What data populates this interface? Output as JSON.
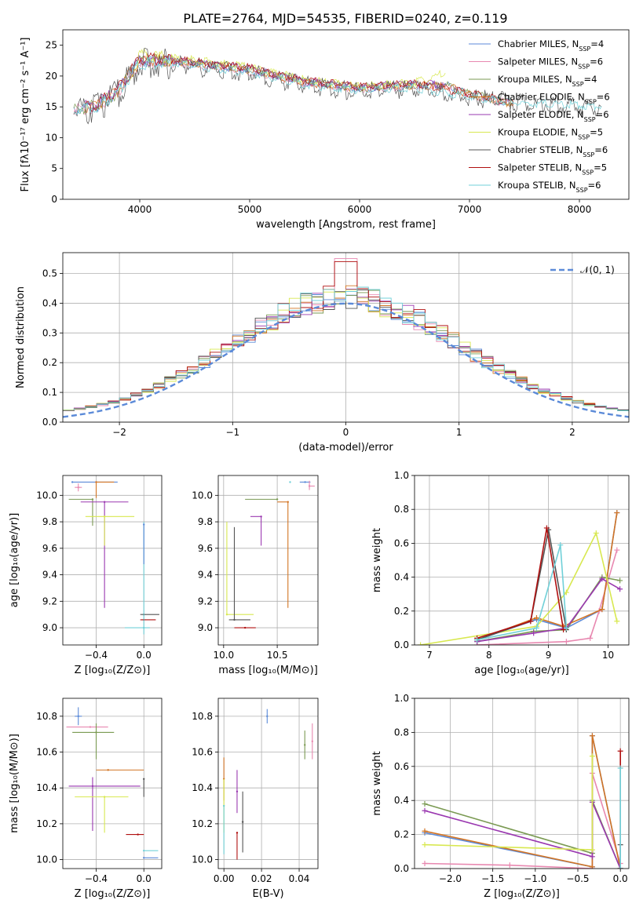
{
  "figure_title": "PLATE=2764, MJD=54535, FIBERID=0240, z=0.119",
  "colors": [
    "#5b8ad8",
    "#e888b0",
    "#7a9a52",
    "#d27424",
    "#9a38b0",
    "#d8e850",
    "#555555",
    "#b01010",
    "#70d0d8"
  ],
  "chart_data": [
    {
      "id": "spectrum",
      "type": "line",
      "xlabel": "wavelength [Angstrom, rest frame]",
      "ylabel": "Flux [fλ10⁻¹⁷ erg cm⁻² s⁻¹ A⁻¹]",
      "xlim": [
        3300,
        8450
      ],
      "ylim": [
        0,
        27.5
      ],
      "xticks": [
        4000,
        5000,
        6000,
        7000,
        8000
      ],
      "yticks": [
        0,
        5,
        10,
        15,
        20,
        25
      ],
      "grid": false,
      "legend_position": "top-right",
      "series": [
        {
          "name": "Chabrier MILES, N_SSP=4",
          "x": [
            3400,
            3600,
            3800,
            4000,
            4200,
            4500,
            5000,
            5500,
            6000,
            6500,
            6800,
            7000,
            7400
          ],
          "y": [
            14.8,
            15.0,
            17.5,
            22.5,
            22.5,
            22.0,
            21.0,
            19.0,
            18.0,
            18.5,
            18.5,
            17.0,
            15.5
          ]
        },
        {
          "name": "Salpeter MILES, N_SSP=6",
          "x": [
            3400,
            3600,
            3800,
            4000,
            4200,
            4500,
            5000,
            5500,
            6000,
            6500,
            6800,
            7000,
            7400
          ],
          "y": [
            14.6,
            15.1,
            17.3,
            22.3,
            22.3,
            21.8,
            20.8,
            18.9,
            17.9,
            18.4,
            18.3,
            16.9,
            15.4
          ]
        },
        {
          "name": "Kroupa MILES, N_SSP=4",
          "x": [
            3400,
            3600,
            3800,
            4000,
            4200,
            4500,
            5000,
            5500,
            6000,
            6500,
            6800,
            7000,
            7400
          ],
          "y": [
            14.7,
            15.2,
            17.4,
            22.4,
            22.6,
            22.1,
            21.1,
            19.1,
            18.1,
            18.6,
            18.4,
            17.1,
            15.6
          ]
        },
        {
          "name": "Chabrier ELODIE, N_SSP=6",
          "x": [
            3500,
            3600,
            3800,
            4000,
            4200,
            4500,
            5000,
            5500,
            6000,
            6500,
            6800,
            7000,
            7400
          ],
          "y": [
            15.0,
            15.2,
            17.6,
            22.6,
            22.6,
            22.1,
            21.0,
            19.0,
            18.0,
            18.5,
            18.4,
            17.0,
            15.5
          ]
        },
        {
          "name": "Salpeter ELODIE, N_SSP=6",
          "x": [
            3500,
            3600,
            3800,
            4000,
            4200,
            4500,
            5000,
            5500,
            6000,
            6500,
            6780
          ],
          "y": [
            15.1,
            15.3,
            17.7,
            22.7,
            22.7,
            22.2,
            21.2,
            19.2,
            18.2,
            18.7,
            18.6
          ]
        },
        {
          "name": "Kroupa ELODIE, N_SSP=5",
          "x": [
            3900,
            4000,
            4200,
            4500,
            5000,
            5500,
            6000,
            6500,
            6780
          ],
          "y": [
            19.0,
            23.5,
            23.0,
            22.6,
            21.4,
            19.4,
            18.3,
            18.9,
            20.5
          ]
        },
        {
          "name": "Chabrier STELIB, N_SSP=6",
          "x": [
            3400,
            3600,
            3800,
            4000,
            4200,
            4500,
            5000,
            5500,
            6000,
            6500,
            7000,
            7500,
            8000,
            8200
          ],
          "y": [
            14.5,
            15.0,
            17.0,
            22.0,
            22.0,
            21.5,
            20.5,
            18.5,
            17.5,
            18.0,
            16.5,
            15.5,
            15.2,
            15.0
          ]
        },
        {
          "name": "Salpeter STELIB, N_SSP=5",
          "x": [
            3500,
            3600,
            3800,
            4000,
            4200,
            4500,
            5000,
            5500,
            6000,
            6500,
            7000,
            7400
          ],
          "y": [
            15.2,
            15.4,
            17.8,
            22.8,
            22.8,
            22.3,
            21.3,
            19.3,
            18.3,
            18.8,
            17.2,
            15.7
          ]
        },
        {
          "name": "Kroupa STELIB, N_SSP=6",
          "x": [
            3400,
            3600,
            3800,
            4000,
            4200,
            4500,
            5000,
            5500,
            6000,
            6500,
            7000,
            7500,
            8000,
            8200
          ],
          "y": [
            14.6,
            15.0,
            17.1,
            22.1,
            22.1,
            21.6,
            20.6,
            18.6,
            17.6,
            18.1,
            16.6,
            15.6,
            15.3,
            15.1
          ]
        }
      ]
    },
    {
      "id": "residuals",
      "type": "line",
      "xlabel": "(data-model)/error",
      "ylabel": "Normed distribution",
      "xlim": [
        -2.5,
        2.5
      ],
      "ylim": [
        0,
        0.57
      ],
      "xticks": [
        -2,
        -1,
        0,
        1,
        2
      ],
      "yticks": [
        0.0,
        0.1,
        0.2,
        0.3,
        0.4,
        0.5
      ],
      "grid": true,
      "legend_position": "top-right",
      "legend": [
        "𝒩(0, 1)"
      ],
      "reference_curve": "normal(0,1)",
      "bin_width": 0.1
    },
    {
      "id": "age-vs-z",
      "type": "scatter",
      "xlabel": "Z [log₁₀(Z/Z⊙)]",
      "ylabel": "age  [log₁₀(age/yr)]",
      "xlim": [
        -0.68,
        0.15
      ],
      "ylim": [
        8.87,
        10.15
      ],
      "xticks": [
        -0.4,
        0.0
      ],
      "yticks": [
        9.0,
        9.2,
        9.4,
        9.6,
        9.8,
        10.0
      ],
      "grid": true,
      "points": [
        {
          "x": -0.6,
          "y": 10.1,
          "xerr": [
            0.0,
            0.38
          ],
          "yerr": [
            0.0,
            0.0
          ]
        },
        {
          "x": -0.55,
          "y": 10.06,
          "xerr": [
            0.03,
            0.03
          ],
          "yerr": [
            0.03,
            0.03
          ]
        },
        {
          "x": -0.43,
          "y": 9.97,
          "xerr": [
            0.2,
            0.0
          ],
          "yerr": [
            0.2,
            0.0
          ]
        },
        {
          "x": -0.4,
          "y": 10.1,
          "xerr": [
            0.0,
            0.15
          ],
          "yerr": [
            0.12,
            0.0
          ]
        },
        {
          "x": -0.33,
          "y": 9.95,
          "xerr": [
            0.2,
            0.2
          ],
          "yerr": [
            0.8,
            0.0
          ]
        },
        {
          "x": -0.33,
          "y": 9.84,
          "xerr": [
            0.16,
            0.25
          ],
          "yerr": [
            0.22,
            0.0
          ]
        },
        {
          "x": 0.0,
          "y": 9.1,
          "xerr": [
            0.03,
            0.13
          ],
          "yerr": [
            0.0,
            0.0
          ]
        },
        {
          "x": 0.0,
          "y": 9.06,
          "xerr": [
            0.03,
            0.1
          ],
          "yerr": [
            0.0,
            0.0
          ]
        },
        {
          "x": 0.0,
          "y": 9.0,
          "xerr": [
            0.16,
            0.05
          ],
          "yerr": [
            0.05,
            0.8
          ]
        },
        {
          "x": 0.0,
          "y": 9.78,
          "xerr": [
            0.0,
            0.0
          ],
          "yerr": [
            0.3,
            0.0
          ]
        }
      ]
    },
    {
      "id": "age-vs-mass",
      "type": "scatter",
      "xlabel": "mass [log₁₀(M/M⊙)]",
      "ylabel": "",
      "xlim": [
        9.95,
        10.88
      ],
      "ylim": [
        8.87,
        10.15
      ],
      "xticks": [
        10.0,
        10.5
      ],
      "yticks": [
        9.0,
        9.2,
        9.4,
        9.6,
        9.8,
        10.0
      ],
      "grid": true,
      "points": [
        {
          "x": 10.76,
          "y": 10.1,
          "xerr": [
            0.05,
            0.05
          ],
          "yerr": [
            0.0,
            0.0
          ]
        },
        {
          "x": 10.8,
          "y": 10.07,
          "xerr": [
            0.0,
            0.05
          ],
          "yerr": [
            0.03,
            0.04
          ]
        },
        {
          "x": 10.5,
          "y": 9.97,
          "xerr": [
            0.3,
            0.0
          ],
          "yerr": [
            0.0,
            0.0
          ]
        },
        {
          "x": 10.6,
          "y": 9.95,
          "xerr": [
            0.1,
            0.0
          ],
          "yerr": [
            0.8,
            0.0
          ]
        },
        {
          "x": 10.35,
          "y": 9.84,
          "xerr": [
            0.1,
            0.0
          ],
          "yerr": [
            0.22,
            0.0
          ]
        },
        {
          "x": 10.03,
          "y": 9.1,
          "xerr": [
            0.0,
            0.25
          ],
          "yerr": [
            0.0,
            0.7
          ]
        },
        {
          "x": 10.1,
          "y": 9.06,
          "xerr": [
            0.05,
            0.15
          ],
          "yerr": [
            0.0,
            0.7
          ]
        },
        {
          "x": 10.2,
          "y": 9.0,
          "xerr": [
            0.1,
            0.1
          ],
          "yerr": [
            0.0,
            0.0
          ]
        },
        {
          "x": 10.62,
          "y": 10.1,
          "xerr": [
            0.0,
            0.0
          ],
          "yerr": [
            0.0,
            0.0
          ]
        }
      ]
    },
    {
      "id": "mw-vs-age",
      "type": "line",
      "xlabel": "age  [log₁₀(age/yr)]",
      "ylabel": "mass weight",
      "xlim": [
        6.75,
        10.35
      ],
      "ylim": [
        0,
        1
      ],
      "xticks": [
        7,
        8,
        9,
        10
      ],
      "yticks": [
        0.0,
        0.2,
        0.4,
        0.6,
        0.8,
        1.0
      ],
      "grid": true,
      "series": [
        {
          "x": [
            7.8,
            8.8,
            9.3,
            9.9,
            10.15
          ],
          "y": [
            0.03,
            0.15,
            0.1,
            0.21,
            0.78
          ]
        },
        {
          "x": [
            7.8,
            9.3,
            9.7,
            9.85,
            10.15
          ],
          "y": [
            0.0,
            0.02,
            0.04,
            0.2,
            0.56
          ]
        },
        {
          "x": [
            7.8,
            8.75,
            9.3,
            9.9,
            10.2
          ],
          "y": [
            0.02,
            0.08,
            0.09,
            0.4,
            0.38
          ]
        },
        {
          "x": [
            7.8,
            8.8,
            9.25,
            9.9,
            10.15
          ],
          "y": [
            0.03,
            0.16,
            0.11,
            0.21,
            0.78
          ]
        },
        {
          "x": [
            7.8,
            8.75,
            9.3,
            9.9,
            10.2
          ],
          "y": [
            0.02,
            0.07,
            0.1,
            0.39,
            0.33
          ]
        },
        {
          "x": [
            6.85,
            8.8,
            9.3,
            9.8,
            10.15
          ],
          "y": [
            0.0,
            0.11,
            0.31,
            0.66,
            0.14
          ]
        },
        {
          "x": [
            7.8,
            8.7,
            9.0,
            9.3
          ],
          "y": [
            0.03,
            0.14,
            0.68,
            0.09
          ]
        },
        {
          "x": [
            7.8,
            8.7,
            8.97,
            9.25
          ],
          "y": [
            0.04,
            0.14,
            0.69,
            0.09
          ]
        },
        {
          "x": [
            7.8,
            8.8,
            9.2,
            9.3
          ],
          "y": [
            0.03,
            0.1,
            0.59,
            0.1
          ]
        }
      ]
    },
    {
      "id": "mass-vs-z",
      "type": "scatter",
      "xlabel": "Z [log₁₀(Z/Z⊙)]",
      "ylabel": "mass [log₁₀(M/M⊙)]",
      "xlim": [
        -0.68,
        0.15
      ],
      "ylim": [
        9.95,
        10.9
      ],
      "xticks": [
        -0.4,
        0.0
      ],
      "yticks": [
        10.0,
        10.2,
        10.4,
        10.6,
        10.8
      ],
      "grid": true,
      "points": [
        {
          "x": -0.55,
          "y": 10.8,
          "xerr": [
            0.03,
            0.03
          ],
          "yerr": [
            0.05,
            0.05
          ]
        },
        {
          "x": -0.45,
          "y": 10.74,
          "xerr": [
            0.2,
            0.15
          ],
          "yerr": [
            0.0,
            0.0
          ]
        },
        {
          "x": -0.4,
          "y": 10.71,
          "xerr": [
            0.2,
            0.15
          ],
          "yerr": [
            0.15,
            0.05
          ]
        },
        {
          "x": -0.3,
          "y": 10.5,
          "xerr": [
            0.1,
            0.3
          ],
          "yerr": [
            0.0,
            0.0
          ]
        },
        {
          "x": -0.43,
          "y": 10.41,
          "xerr": [
            0.2,
            0.4
          ],
          "yerr": [
            0.25,
            0.05
          ]
        },
        {
          "x": -0.33,
          "y": 10.35,
          "xerr": [
            0.25,
            0.2
          ],
          "yerr": [
            0.2,
            0.0
          ]
        },
        {
          "x": 0.0,
          "y": 10.45,
          "xerr": [
            0.0,
            0.0
          ],
          "yerr": [
            0.1,
            0.0
          ]
        },
        {
          "x": -0.05,
          "y": 10.14,
          "xerr": [
            0.1,
            0.05
          ],
          "yerr": [
            0.0,
            0.0
          ]
        },
        {
          "x": 0.0,
          "y": 10.05,
          "xerr": [
            0.0,
            0.12
          ],
          "yerr": [
            0.0,
            0.0
          ]
        },
        {
          "x": 0.0,
          "y": 10.01,
          "xerr": [
            0.0,
            0.12
          ],
          "yerr": [
            0.0,
            0.0
          ]
        }
      ]
    },
    {
      "id": "mass-vs-ebv",
      "type": "scatter",
      "xlabel": "E(B-V)",
      "ylabel": "",
      "xlim": [
        -0.003,
        0.05
      ],
      "ylim": [
        9.95,
        10.9
      ],
      "xticks": [
        0.0,
        0.02,
        0.04
      ],
      "yticks": [
        10.0,
        10.2,
        10.4,
        10.6,
        10.8
      ],
      "grid": true,
      "points": [
        {
          "x": 0.023,
          "y": 10.8,
          "yerr": [
            0.04,
            0.04
          ]
        },
        {
          "x": 0.047,
          "y": 10.66,
          "yerr": [
            0.1,
            0.1
          ]
        },
        {
          "x": 0.043,
          "y": 10.64,
          "yerr": [
            0.08,
            0.08
          ]
        },
        {
          "x": 0.0,
          "y": 10.45,
          "yerr": [
            0.12,
            0.12
          ]
        },
        {
          "x": 0.007,
          "y": 10.38,
          "yerr": [
            0.12,
            0.12
          ]
        },
        {
          "x": 0.0,
          "y": 10.3,
          "yerr": [
            0.15,
            0.15
          ]
        },
        {
          "x": 0.01,
          "y": 10.21,
          "yerr": [
            0.17,
            0.17
          ]
        },
        {
          "x": 0.007,
          "y": 10.15,
          "yerr": [
            0.15,
            0.0
          ]
        },
        {
          "x": 0.0,
          "y": 10.3,
          "yerr": [
            0.27,
            0.0
          ]
        }
      ]
    },
    {
      "id": "mw-vs-z",
      "type": "line",
      "xlabel": "Z [log₁₀(Z/Z⊙)]",
      "ylabel": "mass weight",
      "xlim": [
        -2.42,
        0.1
      ],
      "ylim": [
        0,
        1
      ],
      "xticks": [
        -2.0,
        -1.5,
        -1.0,
        -0.5,
        0.0
      ],
      "yticks": [
        0.0,
        0.2,
        0.4,
        0.6,
        0.8,
        1.0
      ],
      "grid": true,
      "series": [
        {
          "x": [
            -2.3,
            -0.33,
            -0.33,
            0.0
          ],
          "y": [
            0.21,
            0.01,
            0.78,
            0.0
          ]
        },
        {
          "x": [
            -2.3,
            -1.3,
            -0.33,
            -0.33,
            0.0
          ],
          "y": [
            0.03,
            0.02,
            0.0,
            0.56,
            0.03
          ]
        },
        {
          "x": [
            -2.3,
            -0.33,
            -0.33,
            0.0
          ],
          "y": [
            0.38,
            0.09,
            0.4,
            0.0
          ]
        },
        {
          "x": [
            -2.3,
            -0.33,
            -0.33,
            0.0
          ],
          "y": [
            0.22,
            0.01,
            0.78,
            0.0
          ]
        },
        {
          "x": [
            -2.3,
            -0.33,
            -0.33,
            0.0
          ],
          "y": [
            0.34,
            0.07,
            0.39,
            0.0
          ]
        },
        {
          "x": [
            -2.3,
            -0.33,
            -0.33
          ],
          "y": [
            0.14,
            0.11,
            0.66
          ]
        },
        {
          "x": [
            0.0,
            0.0
          ],
          "y": [
            0.0,
            0.14
          ]
        },
        {
          "x": [
            0.0,
            0.0
          ],
          "y": [
            0.0,
            0.69
          ]
        },
        {
          "x": [
            0.0,
            0.0
          ],
          "y": [
            0.0,
            0.59
          ]
        }
      ]
    }
  ]
}
